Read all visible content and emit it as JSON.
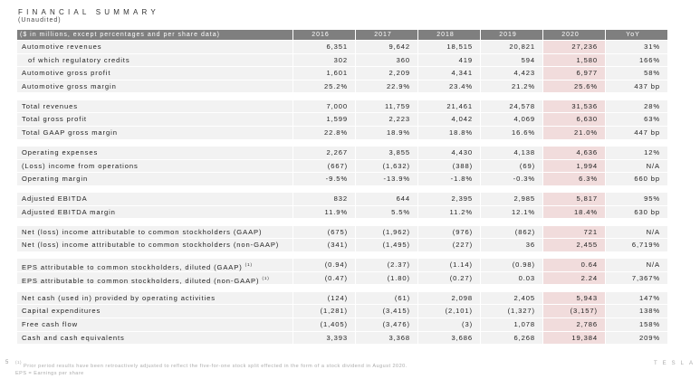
{
  "title": "FINANCIAL SUMMARY",
  "subtitle": "(Unaudited)",
  "table": {
    "header": [
      "($ in millions, except percentages and per share data)",
      "2016",
      "2017",
      "2018",
      "2019",
      "2020",
      "YoY"
    ],
    "highlight_column": "2020",
    "highlight_color": "#f1dcdc",
    "header_color": "#7f7f7f",
    "groups": [
      [
        {
          "label": "Automotive revenues",
          "values": [
            "6,351",
            "9,642",
            "18,515",
            "20,821",
            "27,236",
            "31%"
          ]
        },
        {
          "label": "of which regulatory credits",
          "indent": true,
          "values": [
            "302",
            "360",
            "419",
            "594",
            "1,580",
            "166%"
          ]
        },
        {
          "label": "Automotive gross profit",
          "values": [
            "1,601",
            "2,209",
            "4,341",
            "4,423",
            "6,977",
            "58%"
          ]
        },
        {
          "label": "Automotive gross margin",
          "values": [
            "25.2%",
            "22.9%",
            "23.4%",
            "21.2%",
            "25.6%",
            "437 bp"
          ]
        }
      ],
      [
        {
          "label": "Total revenues",
          "values": [
            "7,000",
            "11,759",
            "21,461",
            "24,578",
            "31,536",
            "28%"
          ]
        },
        {
          "label": "Total gross profit",
          "values": [
            "1,599",
            "2,223",
            "4,042",
            "4,069",
            "6,630",
            "63%"
          ]
        },
        {
          "label": "Total GAAP gross margin",
          "values": [
            "22.8%",
            "18.9%",
            "18.8%",
            "16.6%",
            "21.0%",
            "447 bp"
          ]
        }
      ],
      [
        {
          "label": "Operating expenses",
          "values": [
            "2,267",
            "3,855",
            "4,430",
            "4,138",
            "4,636",
            "12%"
          ]
        },
        {
          "label": "(Loss) income from operations",
          "values": [
            "(667)",
            "(1,632)",
            "(388)",
            "(69)",
            "1,994",
            "N/A"
          ]
        },
        {
          "label": "Operating margin",
          "values": [
            "-9.5%",
            "-13.9%",
            "-1.8%",
            "-0.3%",
            "6.3%",
            "660 bp"
          ]
        }
      ],
      [
        {
          "label": "Adjusted EBITDA",
          "values": [
            "832",
            "644",
            "2,395",
            "2,985",
            "5,817",
            "95%"
          ]
        },
        {
          "label": "Adjusted EBITDA margin",
          "values": [
            "11.9%",
            "5.5%",
            "11.2%",
            "12.1%",
            "18.4%",
            "630 bp"
          ]
        }
      ],
      [
        {
          "label": "Net (loss) income attributable to common stockholders (GAAP)",
          "values": [
            "(675)",
            "(1,962)",
            "(976)",
            "(862)",
            "721",
            "N/A"
          ]
        },
        {
          "label": "Net (loss) income attributable to common stockholders (non-GAAP)",
          "values": [
            "(341)",
            "(1,495)",
            "(227)",
            "36",
            "2,455",
            "6,719%"
          ]
        }
      ],
      [
        {
          "label": "EPS attributable to common stockholders, diluted (GAAP)",
          "sup": "(1)",
          "values": [
            "(0.94)",
            "(2.37)",
            "(1.14)",
            "(0.98)",
            "0.64",
            "N/A"
          ]
        },
        {
          "label": "EPS attributable to common stockholders, diluted (non-GAAP)",
          "sup": "(1)",
          "values": [
            "(0.47)",
            "(1.80)",
            "(0.27)",
            "0.03",
            "2.24",
            "7,367%"
          ]
        }
      ],
      [
        {
          "label": "Net cash (used in) provided by operating activities",
          "values": [
            "(124)",
            "(61)",
            "2,098",
            "2,405",
            "5,943",
            "147%"
          ]
        },
        {
          "label": "Capital expenditures",
          "values": [
            "(1,281)",
            "(3,415)",
            "(2,101)",
            "(1,327)",
            "(3,157)",
            "138%"
          ]
        },
        {
          "label": "Free cash flow",
          "values": [
            "(1,405)",
            "(3,476)",
            "(3)",
            "1,078",
            "2,786",
            "158%"
          ]
        },
        {
          "label": "Cash and cash equivalents",
          "values": [
            "3,393",
            "3,368",
            "3,686",
            "6,268",
            "19,384",
            "209%"
          ]
        }
      ]
    ]
  },
  "footer": {
    "page_number": "5",
    "footnote_marker": "(1)",
    "footnote": "Prior period results have been retroactively adjusted to reflect the five-for-one stock split effected in the form of a stock dividend in August 2020.",
    "eps_definition": "EPS = Earnings per share",
    "logo": "TESLA"
  }
}
